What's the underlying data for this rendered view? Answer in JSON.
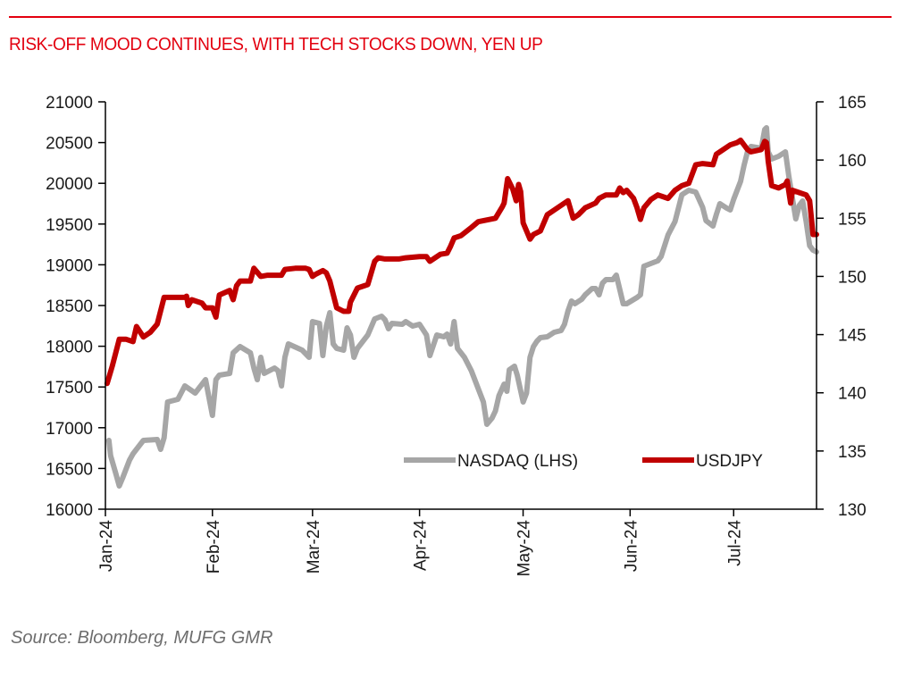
{
  "header": {
    "title": "RISK-OFF MOOD CONTINUES, WITH TECH STOCKS DOWN, YEN UP"
  },
  "footer": {
    "source": "Source: Bloomberg, MUFG GMR"
  },
  "colors": {
    "accent": "#e3000f",
    "nasdaq": "#a6a6a6",
    "usdjpy": "#c00000",
    "axis": "#000000"
  },
  "chart_data": {
    "type": "line",
    "title": "RISK-OFF MOOD CONTINUES, WITH TECH STOCKS DOWN, YEN UP",
    "xlabel": "",
    "ylabel_left": "",
    "ylabel_right": "",
    "x_unit": "days since 2024-01-01",
    "xlim": [
      0,
      206
    ],
    "ylim_left": [
      16000,
      21000
    ],
    "ylim_right": [
      130,
      165
    ],
    "grid": false,
    "legend_position": "bottom-right",
    "x_ticks": [
      {
        "label": "Jan-24",
        "x": 0
      },
      {
        "label": "Feb-24",
        "x": 31
      },
      {
        "label": "Mar-24",
        "x": 60
      },
      {
        "label": "Apr-24",
        "x": 91
      },
      {
        "label": "May-24",
        "x": 121
      },
      {
        "label": "Jun-24",
        "x": 152
      },
      {
        "label": "Jul-24",
        "x": 182
      }
    ],
    "y_ticks_left": [
      "16000",
      "16500",
      "17000",
      "17500",
      "18000",
      "18500",
      "19000",
      "19500",
      "20000",
      "20500",
      "21000"
    ],
    "y_ticks_right": [
      "130",
      "135",
      "140",
      "145",
      "150",
      "155",
      "160",
      "165"
    ],
    "series": [
      {
        "name": "NASDAQ (LHS)",
        "axis": "left",
        "color": "#a6a6a6",
        "points": [
          [
            1,
            16844
          ],
          [
            1.5,
            16658
          ],
          [
            3,
            16439
          ],
          [
            4,
            16285
          ],
          [
            5,
            16384
          ],
          [
            7,
            16603
          ],
          [
            8,
            16680
          ],
          [
            10,
            16789
          ],
          [
            11,
            16844
          ],
          [
            15,
            16855
          ],
          [
            16,
            16735
          ],
          [
            17,
            16877
          ],
          [
            18,
            17316
          ],
          [
            21,
            17349
          ],
          [
            23,
            17513
          ],
          [
            26,
            17425
          ],
          [
            29,
            17590
          ],
          [
            31,
            17151
          ],
          [
            32,
            17590
          ],
          [
            33,
            17645
          ],
          [
            36,
            17667
          ],
          [
            37,
            17919
          ],
          [
            39,
            17996
          ],
          [
            42,
            17919
          ],
          [
            43,
            17732
          ],
          [
            44,
            17590
          ],
          [
            45,
            17864
          ],
          [
            46,
            17667
          ],
          [
            49,
            17732
          ],
          [
            50,
            17700
          ],
          [
            51,
            17513
          ],
          [
            52,
            17864
          ],
          [
            53,
            18029
          ],
          [
            57,
            17952
          ],
          [
            59,
            17864
          ],
          [
            60,
            18303
          ],
          [
            62,
            18281
          ],
          [
            63,
            17886
          ],
          [
            64,
            18248
          ],
          [
            65,
            18412
          ],
          [
            66,
            18029
          ],
          [
            67,
            17974
          ],
          [
            69,
            17952
          ],
          [
            70,
            18226
          ],
          [
            71,
            18138
          ],
          [
            72,
            17864
          ],
          [
            73,
            17974
          ],
          [
            75,
            18083
          ],
          [
            76,
            18138
          ],
          [
            78,
            18336
          ],
          [
            80,
            18368
          ],
          [
            81,
            18325
          ],
          [
            82,
            18215
          ],
          [
            83,
            18281
          ],
          [
            86,
            18270
          ],
          [
            87,
            18303
          ],
          [
            89,
            18248
          ],
          [
            91,
            18270
          ],
          [
            93,
            18138
          ],
          [
            94,
            17886
          ],
          [
            96,
            18138
          ],
          [
            98,
            18116
          ],
          [
            99,
            18149
          ],
          [
            100,
            18029
          ],
          [
            101,
            18303
          ],
          [
            102,
            17974
          ],
          [
            104,
            17864
          ],
          [
            106,
            17700
          ],
          [
            108,
            17480
          ],
          [
            109.5,
            17316
          ],
          [
            110.5,
            17042
          ],
          [
            112,
            17118
          ],
          [
            113,
            17206
          ],
          [
            114,
            17393
          ],
          [
            115.5,
            17535
          ],
          [
            116.3,
            17447
          ],
          [
            117,
            17711
          ],
          [
            118.5,
            17754
          ],
          [
            119.3,
            17645
          ],
          [
            121,
            17316
          ],
          [
            122,
            17425
          ],
          [
            123,
            17864
          ],
          [
            124,
            17996
          ],
          [
            125,
            18061
          ],
          [
            126,
            18105
          ],
          [
            128,
            18116
          ],
          [
            130,
            18171
          ],
          [
            132,
            18193
          ],
          [
            133,
            18270
          ],
          [
            134,
            18434
          ],
          [
            135,
            18555
          ],
          [
            136,
            18522
          ],
          [
            138,
            18577
          ],
          [
            139,
            18632
          ],
          [
            141,
            18708
          ],
          [
            142,
            18708
          ],
          [
            143,
            18632
          ],
          [
            144,
            18774
          ],
          [
            145,
            18818
          ],
          [
            147,
            18818
          ],
          [
            148,
            18873
          ],
          [
            150,
            18522
          ],
          [
            151,
            18522
          ],
          [
            154,
            18599
          ],
          [
            155,
            18632
          ],
          [
            156,
            18982
          ],
          [
            158,
            19015
          ],
          [
            160,
            19048
          ],
          [
            161,
            19103
          ],
          [
            163,
            19366
          ],
          [
            165,
            19531
          ],
          [
            167,
            19860
          ],
          [
            169,
            19914
          ],
          [
            171,
            19893
          ],
          [
            173,
            19706
          ],
          [
            174,
            19542
          ],
          [
            176,
            19476
          ],
          [
            177,
            19618
          ],
          [
            178,
            19750
          ],
          [
            180,
            19695
          ],
          [
            181,
            19673
          ],
          [
            182,
            19805
          ],
          [
            184,
            20024
          ],
          [
            185,
            20221
          ],
          [
            186,
            20386
          ],
          [
            187,
            20452
          ],
          [
            190,
            20430
          ],
          [
            191,
            20660
          ],
          [
            191.5,
            20682
          ],
          [
            192,
            20386
          ],
          [
            193,
            20298
          ],
          [
            195,
            20331
          ],
          [
            197,
            20386
          ],
          [
            198,
            20079
          ],
          [
            200,
            19564
          ],
          [
            201,
            19728
          ],
          [
            202,
            19783
          ],
          [
            203,
            19531
          ],
          [
            204,
            19235
          ],
          [
            205,
            19180
          ],
          [
            206,
            19158
          ]
        ]
      },
      {
        "name": "USDJPY",
        "axis": "right",
        "color": "#c00000",
        "points": [
          [
            0.5,
            140.8
          ],
          [
            2,
            142.3
          ],
          [
            4,
            144.6
          ],
          [
            6,
            144.6
          ],
          [
            8,
            144.4
          ],
          [
            9,
            145.7
          ],
          [
            11,
            144.8
          ],
          [
            13,
            145.2
          ],
          [
            15,
            145.9
          ],
          [
            17,
            148.2
          ],
          [
            20,
            148.2
          ],
          [
            23,
            148.2
          ],
          [
            23.5,
            148.3
          ],
          [
            24,
            147.5
          ],
          [
            25,
            148.0
          ],
          [
            28,
            147.7
          ],
          [
            29,
            147.3
          ],
          [
            31,
            147.3
          ],
          [
            32,
            146.5
          ],
          [
            33,
            148.4
          ],
          [
            36,
            148.8
          ],
          [
            37,
            148.0
          ],
          [
            38,
            149.2
          ],
          [
            39,
            149.6
          ],
          [
            42,
            149.6
          ],
          [
            43,
            150.7
          ],
          [
            45,
            150.0
          ],
          [
            47,
            150.1
          ],
          [
            51,
            150.1
          ],
          [
            52,
            150.6
          ],
          [
            55,
            150.7
          ],
          [
            58,
            150.7
          ],
          [
            59,
            150.6
          ],
          [
            60,
            150.0
          ],
          [
            61,
            150.2
          ],
          [
            63,
            150.5
          ],
          [
            64,
            150.3
          ],
          [
            65,
            149.6
          ],
          [
            67,
            147.3
          ],
          [
            69,
            147.0
          ],
          [
            70.5,
            147.0
          ],
          [
            71,
            147.8
          ],
          [
            73,
            149.0
          ],
          [
            75,
            149.2
          ],
          [
            76,
            149.3
          ],
          [
            78,
            151.3
          ],
          [
            79,
            151.6
          ],
          [
            81,
            151.5
          ],
          [
            85,
            151.5
          ],
          [
            87,
            151.6
          ],
          [
            91,
            151.7
          ],
          [
            93,
            151.7
          ],
          [
            94,
            151.3
          ],
          [
            97,
            151.9
          ],
          [
            99,
            152.0
          ],
          [
            100,
            152.6
          ],
          [
            101,
            153.3
          ],
          [
            103,
            153.5
          ],
          [
            106,
            154.2
          ],
          [
            108,
            154.7
          ],
          [
            113,
            155.0
          ],
          [
            115,
            156.0
          ],
          [
            115.5,
            156.3
          ],
          [
            116.5,
            158.4
          ],
          [
            118,
            157.5
          ],
          [
            119,
            156.5
          ],
          [
            119.7,
            157.9
          ],
          [
            120.3,
            157.3
          ],
          [
            121,
            154.6
          ],
          [
            123,
            153.2
          ],
          [
            124,
            153.6
          ],
          [
            126,
            153.9
          ],
          [
            128,
            155.3
          ],
          [
            130,
            155.7
          ],
          [
            133,
            156.3
          ],
          [
            134,
            156.5
          ],
          [
            135.5,
            155.0
          ],
          [
            137,
            155.3
          ],
          [
            139,
            155.9
          ],
          [
            142,
            156.3
          ],
          [
            143,
            156.7
          ],
          [
            145,
            157.0
          ],
          [
            148,
            157.0
          ],
          [
            149,
            157.6
          ],
          [
            150,
            157.2
          ],
          [
            151,
            157.4
          ],
          [
            153,
            156.7
          ],
          [
            154,
            155.9
          ],
          [
            155,
            154.9
          ],
          [
            156,
            155.9
          ],
          [
            158,
            156.6
          ],
          [
            160,
            157.0
          ],
          [
            163,
            156.7
          ],
          [
            165,
            157.4
          ],
          [
            167,
            157.8
          ],
          [
            169,
            158.0
          ],
          [
            171,
            159.6
          ],
          [
            173,
            159.7
          ],
          [
            176,
            159.6
          ],
          [
            177,
            160.5
          ],
          [
            179,
            160.9
          ],
          [
            181,
            161.3
          ],
          [
            183,
            161.5
          ],
          [
            184,
            161.7
          ],
          [
            186,
            160.9
          ],
          [
            187,
            160.7
          ],
          [
            190,
            160.9
          ],
          [
            191,
            161.6
          ],
          [
            191.5,
            161.5
          ],
          [
            192,
            159.9
          ],
          [
            193,
            157.8
          ],
          [
            195,
            157.6
          ],
          [
            197,
            157.9
          ],
          [
            197.5,
            158.2
          ],
          [
            198.5,
            156.3
          ],
          [
            199,
            157.4
          ],
          [
            201,
            157.2
          ],
          [
            203,
            157.0
          ],
          [
            204,
            156.5
          ],
          [
            205,
            153.6
          ],
          [
            206,
            153.6
          ]
        ]
      }
    ]
  }
}
